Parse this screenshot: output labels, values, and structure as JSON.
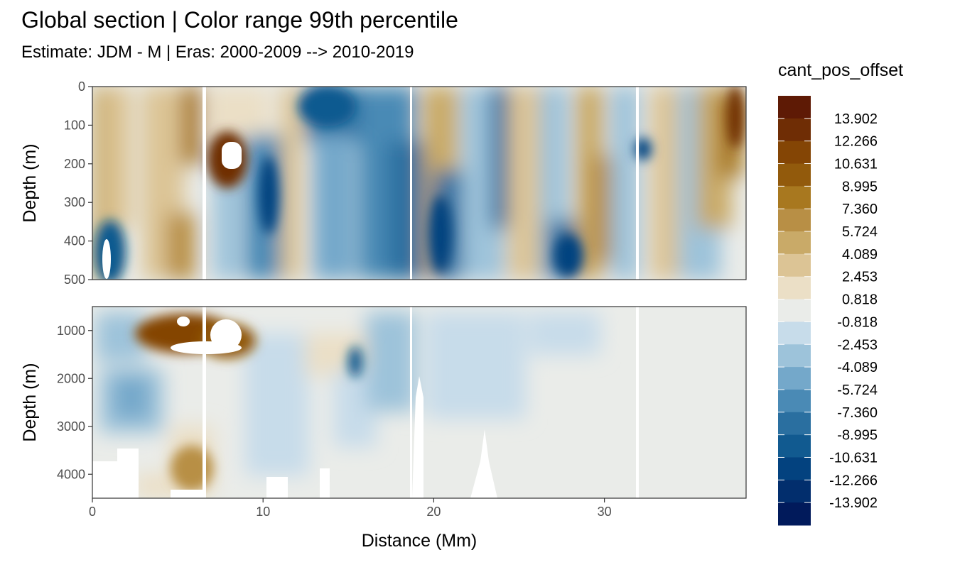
{
  "chart_data": {
    "type": "heatmap",
    "title": "Global section | Color range 99th percentile",
    "subtitle": "Estimate: JDM - M | Eras: 2000-2009 --> 2010-2019",
    "xlabel": "Distance (Mm)",
    "ylabel": "Depth (m)",
    "xlim": [
      0,
      38.3
    ],
    "x_ticks": [
      0,
      10,
      20,
      30
    ],
    "panels": [
      {
        "ylim": [
          0,
          500
        ],
        "y_ticks": [
          0,
          100,
          200,
          300,
          400,
          500
        ]
      },
      {
        "ylim": [
          500,
          4500
        ],
        "y_ticks": [
          1000,
          2000,
          3000,
          4000
        ]
      }
    ],
    "legend": {
      "title": "cant_pos_offset",
      "labels": [
        "13.902",
        "12.266",
        "10.631",
        "8.995",
        "7.360",
        "5.724",
        "4.089",
        "2.453",
        "0.818",
        "-0.818",
        "-2.453",
        "-4.089",
        "-5.724",
        "-7.360",
        "-8.995",
        "-10.631",
        "-12.266",
        "-13.902"
      ],
      "colors": [
        "#5e1a05",
        "#6f2d05",
        "#844505",
        "#925a0c",
        "#a8781f",
        "#b88f45",
        "#c9aa68",
        "#dcc495",
        "#ebdfc6",
        "#eaece9",
        "#c7dcea",
        "#9dc3da",
        "#74a8ca",
        "#4a8ab5",
        "#2a6fa0",
        "#115a90",
        "#03427f",
        "#022e6d",
        "#011a5b"
      ]
    }
  }
}
